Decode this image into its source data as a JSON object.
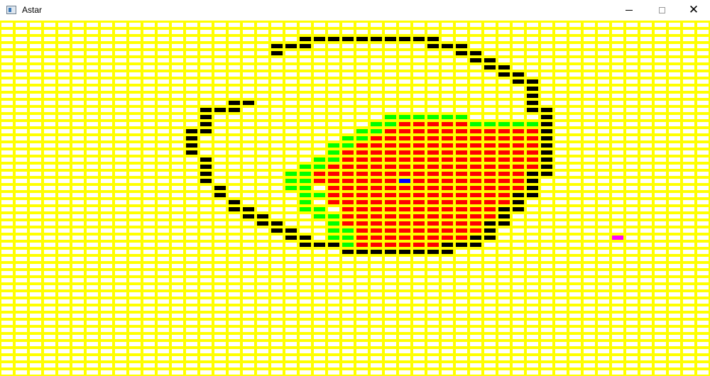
{
  "window": {
    "title": "Astar",
    "icon": "window-icon",
    "controls": [
      "minimize-icon",
      "maximize-icon",
      "close-icon"
    ]
  },
  "grid": {
    "line_color": "#ffff00",
    "colors": {
      "wall": "#000000",
      "open": "#00ff00",
      "closed": "#ff0000",
      "start": "#0000ff",
      "goal": "#ff00ff",
      "empty": "#ffffff"
    },
    "wall_cells": [
      [
        21,
        2
      ],
      [
        22,
        2
      ],
      [
        23,
        2
      ],
      [
        24,
        2
      ],
      [
        25,
        2
      ],
      [
        26,
        2
      ],
      [
        27,
        2
      ],
      [
        28,
        2
      ],
      [
        29,
        2
      ],
      [
        30,
        2
      ],
      [
        19,
        3
      ],
      [
        20,
        3
      ],
      [
        21,
        3
      ],
      [
        30,
        3
      ],
      [
        31,
        3
      ],
      [
        32,
        3
      ],
      [
        19,
        4
      ],
      [
        32,
        4
      ],
      [
        33,
        4
      ],
      [
        33,
        5
      ],
      [
        34,
        5
      ],
      [
        34,
        6
      ],
      [
        35,
        6
      ],
      [
        35,
        7
      ],
      [
        36,
        7
      ],
      [
        36,
        8
      ],
      [
        37,
        8
      ],
      [
        37,
        9
      ],
      [
        37,
        10
      ],
      [
        16,
        11
      ],
      [
        17,
        11
      ],
      [
        37,
        11
      ],
      [
        14,
        12
      ],
      [
        15,
        12
      ],
      [
        16,
        12
      ],
      [
        37,
        12
      ],
      [
        38,
        12
      ],
      [
        14,
        13
      ],
      [
        38,
        13
      ],
      [
        14,
        14
      ],
      [
        38,
        14
      ],
      [
        13,
        15
      ],
      [
        14,
        15
      ],
      [
        38,
        15
      ],
      [
        13,
        16
      ],
      [
        38,
        16
      ],
      [
        13,
        17
      ],
      [
        38,
        17
      ],
      [
        13,
        18
      ],
      [
        38,
        18
      ],
      [
        14,
        19
      ],
      [
        38,
        19
      ],
      [
        14,
        20
      ],
      [
        38,
        20
      ],
      [
        14,
        21
      ],
      [
        37,
        21
      ],
      [
        38,
        21
      ],
      [
        14,
        22
      ],
      [
        37,
        22
      ],
      [
        15,
        23
      ],
      [
        37,
        23
      ],
      [
        15,
        24
      ],
      [
        36,
        24
      ],
      [
        37,
        24
      ],
      [
        16,
        25
      ],
      [
        36,
        25
      ],
      [
        16,
        26
      ],
      [
        17,
        26
      ],
      [
        35,
        26
      ],
      [
        36,
        26
      ],
      [
        17,
        27
      ],
      [
        18,
        27
      ],
      [
        35,
        27
      ],
      [
        18,
        28
      ],
      [
        19,
        28
      ],
      [
        34,
        28
      ],
      [
        35,
        28
      ],
      [
        19,
        29
      ],
      [
        20,
        29
      ],
      [
        34,
        29
      ],
      [
        20,
        30
      ],
      [
        21,
        30
      ],
      [
        33,
        30
      ],
      [
        34,
        30
      ],
      [
        21,
        31
      ],
      [
        22,
        31
      ],
      [
        23,
        31
      ],
      [
        31,
        31
      ],
      [
        32,
        31
      ],
      [
        33,
        31
      ],
      [
        24,
        32
      ],
      [
        25,
        32
      ],
      [
        26,
        32
      ],
      [
        27,
        32
      ],
      [
        28,
        32
      ],
      [
        29,
        32
      ],
      [
        30,
        32
      ],
      [
        31,
        32
      ]
    ],
    "closed_rows": [
      [
        14,
        28,
        32
      ],
      [
        15,
        26,
        37
      ],
      [
        16,
        25,
        37
      ],
      [
        17,
        24,
        37
      ],
      [
        18,
        23,
        37
      ],
      [
        19,
        22,
        37
      ],
      [
        20,
        22,
        37
      ],
      [
        21,
        22,
        36
      ],
      [
        22,
        22,
        36
      ],
      [
        23,
        23,
        36
      ],
      [
        24,
        23,
        35
      ],
      [
        25,
        23,
        35
      ],
      [
        26,
        24,
        34
      ],
      [
        27,
        24,
        34
      ],
      [
        28,
        24,
        33
      ],
      [
        29,
        25,
        33
      ],
      [
        30,
        25,
        32
      ],
      [
        31,
        25,
        30
      ]
    ],
    "open_cells": [
      [
        27,
        13
      ],
      [
        28,
        13
      ],
      [
        29,
        13
      ],
      [
        30,
        13
      ],
      [
        31,
        13
      ],
      [
        32,
        13
      ],
      [
        26,
        14
      ],
      [
        27,
        14
      ],
      [
        33,
        14
      ],
      [
        34,
        14
      ],
      [
        35,
        14
      ],
      [
        36,
        14
      ],
      [
        37,
        14
      ],
      [
        25,
        15
      ],
      [
        26,
        15
      ],
      [
        24,
        16
      ],
      [
        25,
        16
      ],
      [
        23,
        17
      ],
      [
        24,
        17
      ],
      [
        23,
        18
      ],
      [
        22,
        19
      ],
      [
        23,
        19
      ],
      [
        21,
        20
      ],
      [
        22,
        20
      ],
      [
        20,
        21
      ],
      [
        21,
        21
      ],
      [
        20,
        22
      ],
      [
        21,
        22
      ],
      [
        20,
        23
      ],
      [
        21,
        23
      ],
      [
        21,
        24
      ],
      [
        22,
        24
      ],
      [
        21,
        25
      ],
      [
        21,
        26
      ],
      [
        22,
        26
      ],
      [
        22,
        27
      ],
      [
        23,
        27
      ],
      [
        23,
        28
      ],
      [
        23,
        29
      ],
      [
        24,
        29
      ],
      [
        23,
        30
      ],
      [
        24,
        30
      ],
      [
        24,
        31
      ]
    ],
    "start_cell": [
      28,
      22
    ],
    "goal_cell": [
      43,
      30
    ]
  }
}
